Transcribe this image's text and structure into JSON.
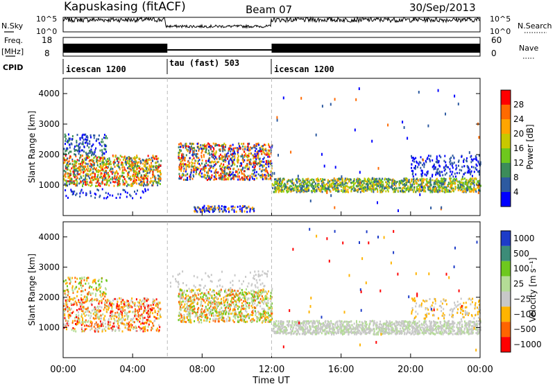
{
  "header": {
    "station": "Kapuskasing (fitACF)",
    "beam": "Beam 07",
    "date": "30/Sep/2013"
  },
  "noise_panel": {
    "left_label": "N.Sky",
    "left_ticks": [
      "10^5",
      "10^0"
    ],
    "right_label": "N.Search",
    "right_ticks": [
      "10^5",
      "10^0"
    ]
  },
  "freq_panel": {
    "left_label_1": "Freq.",
    "left_label_2": "[MHz]",
    "left_ticks": [
      "18",
      "8"
    ],
    "right_label": "Nave",
    "right_ticks": [
      "60",
      "0"
    ]
  },
  "cpid": {
    "label": "CPID",
    "segments": [
      {
        "name": "icescan 1200",
        "start_hour": 0,
        "end_hour": 6
      },
      {
        "name": "tau (fast) 503",
        "start_hour": 6,
        "end_hour": 12
      },
      {
        "name": "icescan 1200",
        "start_hour": 12,
        "end_hour": 24
      }
    ]
  },
  "chart_data": [
    {
      "type": "heatmap",
      "panel": "power",
      "xlabel": "Time UT",
      "ylabel": "Slant Range [km]",
      "x_ticks": [
        "00:00",
        "04:00",
        "08:00",
        "12:00",
        "16:00",
        "20:00",
        "00:00"
      ],
      "x_tick_hours": [
        0,
        4,
        8,
        12,
        16,
        20,
        24
      ],
      "xlim_hours": [
        0,
        24
      ],
      "ylim": [
        0,
        4500
      ],
      "y_ticks": [
        1000,
        2000,
        3000,
        4000
      ],
      "colorbar_label": "Power [dB]",
      "colorbar_ticks": [
        "28",
        "24",
        "20",
        "16",
        "12",
        "8",
        "4"
      ],
      "colorbar_colors": [
        "#ff0000",
        "#ff6a00",
        "#ffa500",
        "#c8c800",
        "#6ec81e",
        "#3c8c5a",
        "#2d5aa0",
        "#0000ff"
      ],
      "regions": [
        {
          "t0": 0.0,
          "t1": 5.6,
          "r0": 800,
          "r1": 2000,
          "level": "mixed-high"
        },
        {
          "t0": 6.6,
          "t1": 12.0,
          "r0": 1100,
          "r1": 2500,
          "level": "high"
        },
        {
          "t0": 12.0,
          "t1": 24.0,
          "r0": 800,
          "r1": 1300,
          "level": "medium"
        }
      ]
    },
    {
      "type": "heatmap",
      "panel": "velocity",
      "xlabel": "Time UT",
      "ylabel": "Slant Range [km]",
      "x_ticks": [
        "00:00",
        "04:00",
        "08:00",
        "12:00",
        "16:00",
        "20:00",
        "00:00"
      ],
      "x_tick_hours": [
        0,
        4,
        8,
        12,
        16,
        20,
        24
      ],
      "xlim_hours": [
        0,
        24
      ],
      "ylim": [
        0,
        4500
      ],
      "y_ticks": [
        1000,
        2000,
        3000,
        4000
      ],
      "colorbar_label": "Velocity [m s⁻¹]",
      "colorbar_ticks": [
        "1000",
        "500",
        "100",
        "25",
        "−25",
        "−100",
        "−500",
        "−1000"
      ],
      "colorbar_colors": [
        "#1e3cc8",
        "#3c8c78",
        "#6ec81e",
        "#b4dc96",
        "#c8c8c8",
        "#ffb400",
        "#ff6400",
        "#ff0000"
      ],
      "regions": [
        {
          "t0": 0.0,
          "t1": 5.6,
          "r0": 700,
          "r1": 2000,
          "level": "negative"
        },
        {
          "t0": 6.6,
          "t1": 12.0,
          "r0": 1100,
          "r1": 2300,
          "level": "mixed"
        },
        {
          "t0": 12.0,
          "t1": 24.0,
          "r0": 800,
          "r1": 1300,
          "level": "near-zero"
        }
      ]
    }
  ]
}
